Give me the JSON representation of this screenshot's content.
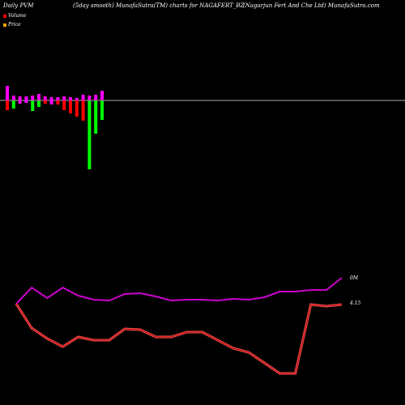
{
  "header": {
    "left": "Daily PVM",
    "mid_left": "(5day smooth) MunafaSutra(TM) charts for NAGAFERT_BZ",
    "right": "(Nagarjun Fert And Che Ltd) MunafaSutra.com"
  },
  "legend": {
    "volume_label": "Volume",
    "volume_color": "#ff0000",
    "price_label": "Price",
    "price_color": "#ffa500"
  },
  "colors": {
    "bar_up": "#00ff00",
    "bar_down": "#ff0000",
    "bar_neutral": "#ff00ff",
    "volume_line": "#cc00cc",
    "price_line": "#ff0000",
    "baseline": "#aaaaaa"
  },
  "chart_data": {
    "type": "bar+line",
    "pvm_bars": [
      {
        "up": 18,
        "down": 12,
        "color": "red"
      },
      {
        "up": 6,
        "down": 10,
        "color": "green"
      },
      {
        "up": 5,
        "down": 4,
        "color": "magenta"
      },
      {
        "up": 5,
        "down": 3,
        "color": "magenta"
      },
      {
        "up": 6,
        "down": 13,
        "color": "green"
      },
      {
        "up": 8,
        "down": 8,
        "color": "green"
      },
      {
        "up": 5,
        "down": 4,
        "color": "red"
      },
      {
        "up": 4,
        "down": 5,
        "color": "magenta"
      },
      {
        "up": 4,
        "down": 5,
        "color": "red"
      },
      {
        "up": 5,
        "down": 12,
        "color": "red"
      },
      {
        "up": 4,
        "down": 16,
        "color": "red"
      },
      {
        "up": 3,
        "down": 20,
        "color": "red"
      },
      {
        "up": 7,
        "down": 25,
        "color": "red"
      },
      {
        "up": 6,
        "down": 85,
        "color": "green"
      },
      {
        "up": 7,
        "down": 41,
        "color": "green"
      },
      {
        "up": 12,
        "down": 24,
        "color": "green"
      }
    ],
    "volume_line": [
      375,
      355,
      368,
      355,
      365,
      370,
      371,
      363,
      362,
      366,
      371,
      370,
      370,
      371,
      369,
      370,
      367,
      360,
      360,
      358,
      358,
      343
    ],
    "price_line": [
      375,
      405,
      418,
      428,
      416,
      420,
      420,
      406,
      407,
      416,
      416,
      410,
      410,
      420,
      430,
      435,
      448,
      461,
      461,
      376,
      378,
      376
    ],
    "volume_label": "0M",
    "price_label": "4.15"
  }
}
